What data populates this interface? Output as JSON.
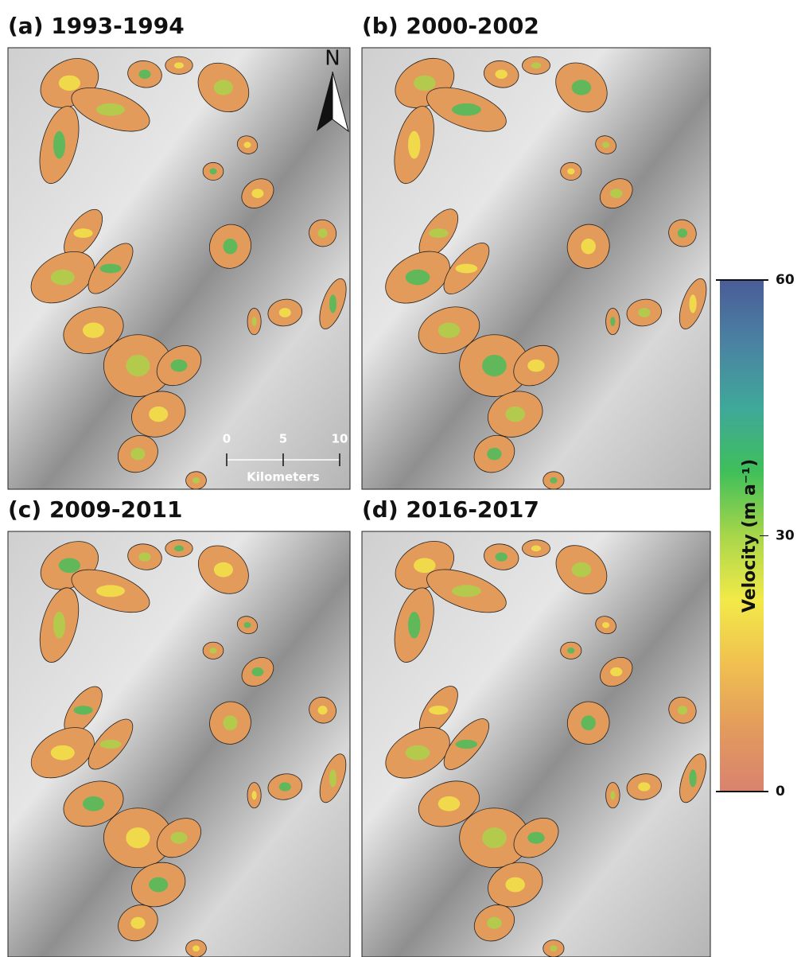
{
  "panels": [
    {
      "label": "(a) 1993-1994"
    },
    {
      "label": "(b) 2000-2002"
    },
    {
      "label": "(c) 2009-2011"
    },
    {
      "label": "(d) 2016-2017"
    }
  ],
  "north_arrow": "N",
  "scale_bar": {
    "ticks": [
      0,
      5,
      10
    ],
    "unit": "Kilometers"
  },
  "colorbar": {
    "label": "Velocity (m a⁻¹)",
    "lim": [
      0,
      60
    ],
    "ticks": [
      0,
      30,
      60
    ],
    "colors": [
      "#d98270",
      "#e39b5c",
      "#f0c050",
      "#f2ea48",
      "#a8d64a",
      "#3fbf5a",
      "#3fa89a",
      "#4a83a2",
      "#4a5c98"
    ]
  }
}
